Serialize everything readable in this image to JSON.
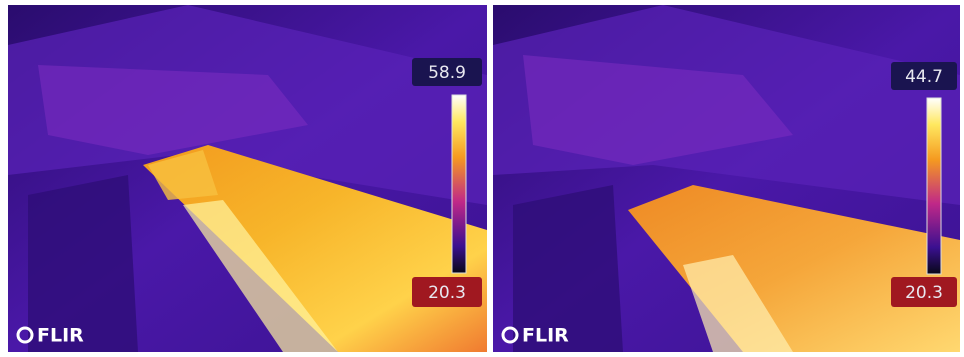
{
  "images": [
    {
      "max_temp": "58.9",
      "min_temp": "20.3",
      "logo": "FLIR"
    },
    {
      "max_temp": "44.7",
      "min_temp": "20.3",
      "logo": "FLIR"
    }
  ]
}
